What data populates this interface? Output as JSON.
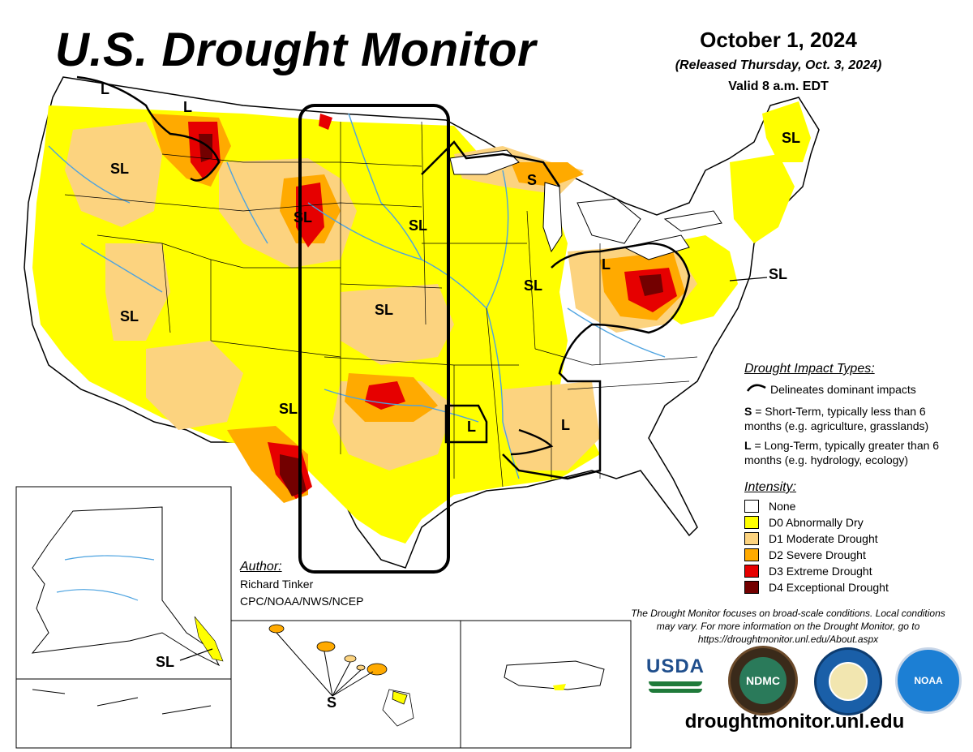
{
  "header": {
    "title": "U.S. Drought Monitor",
    "date": "October 1, 2024",
    "released": "(Released Thursday, Oct. 3, 2024)",
    "valid": "Valid 8 a.m. EDT"
  },
  "impact_types": {
    "heading": "Drought Impact Types:",
    "line_label": "Delineates dominant impacts",
    "short_prefix": "S",
    "short_text": " = Short-Term, typically less than 6 months (e.g. agriculture, grasslands)",
    "long_prefix": "L",
    "long_text": " = Long-Term, typically greater than 6 months (e.g. hydrology, ecology)"
  },
  "intensity": {
    "heading": "Intensity:",
    "levels": [
      {
        "label": "None",
        "color": "#ffffff"
      },
      {
        "label": "D0 Abnormally Dry",
        "color": "#ffff00"
      },
      {
        "label": "D1 Moderate Drought",
        "color": "#fcd37f"
      },
      {
        "label": "D2 Severe Drought",
        "color": "#ffaa00"
      },
      {
        "label": "D3 Extreme Drought",
        "color": "#e60000"
      },
      {
        "label": "D4 Exceptional Drought",
        "color": "#730000"
      }
    ]
  },
  "author": {
    "heading": "Author:",
    "name": "Richard Tinker",
    "org": "CPC/NOAA/NWS/NCEP"
  },
  "disclaimer": "The Drought Monitor focuses on broad-scale conditions. Local conditions may vary. For more information on the Drought Monitor, go to https://droughtmonitor.unl.edu/About.aspx",
  "website": "droughtmonitor.unl.edu",
  "map_labels": {
    "l": "L",
    "s": "S",
    "sl": "SL"
  },
  "logos": {
    "usda": "USDA",
    "ndmc": "NDMC",
    "noaa": "NOAA"
  },
  "colors": {
    "water": "#4da3e0",
    "boundary": "#000000"
  }
}
